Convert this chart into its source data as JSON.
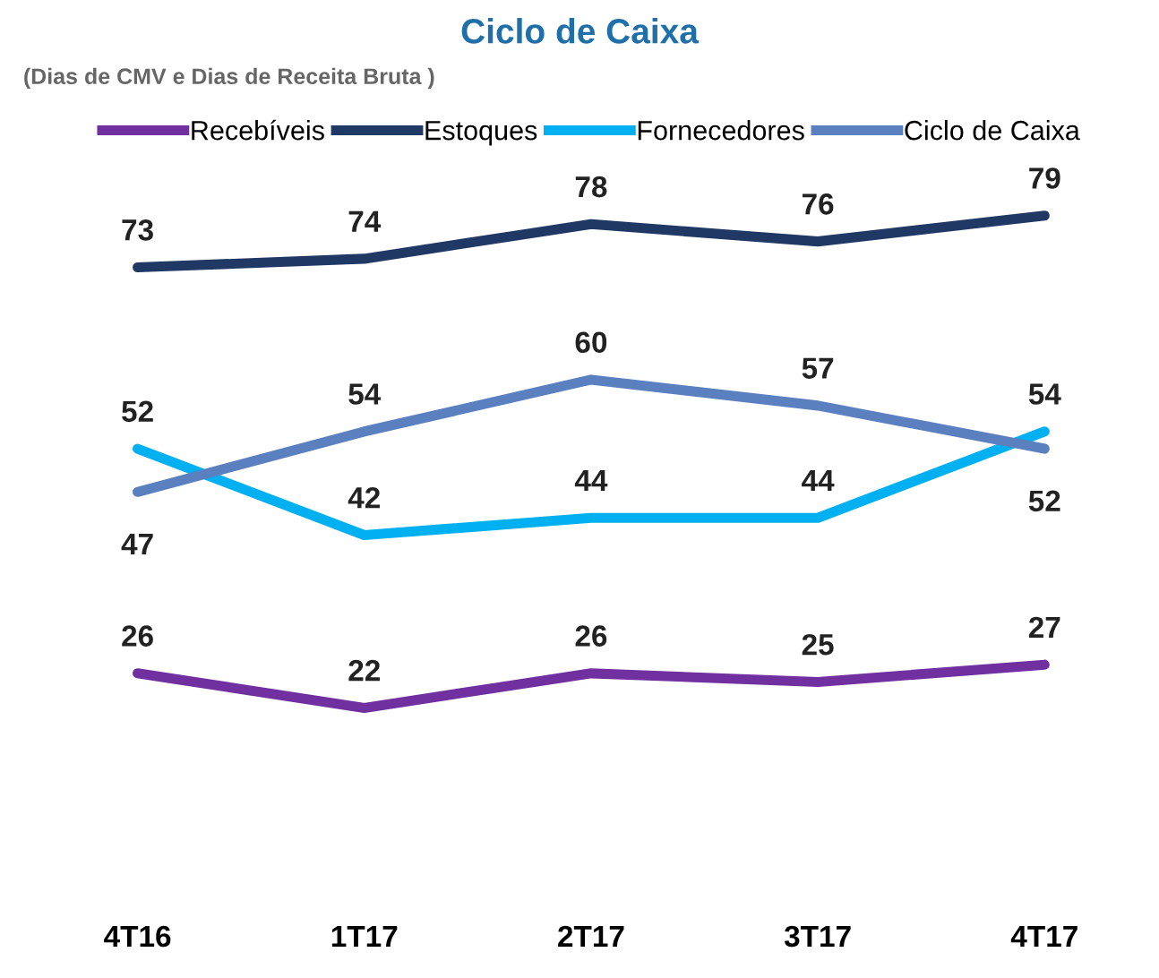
{
  "chart_data": {
    "type": "line",
    "title": "Ciclo de Caixa",
    "subtitle": "(Dias de CMV e Dias de Receita Bruta )",
    "categories": [
      "4T16",
      "1T17",
      "2T17",
      "3T17",
      "4T17"
    ],
    "series": [
      {
        "name": "Recebíveis",
        "color": "#7030a0",
        "values": [
          26,
          22,
          26,
          25,
          27
        ]
      },
      {
        "name": "Estoques",
        "color": "#1f3864",
        "values": [
          73,
          74,
          78,
          76,
          79
        ]
      },
      {
        "name": "Fornecedores",
        "color": "#00b0f0",
        "values": [
          52,
          42,
          44,
          44,
          54
        ]
      },
      {
        "name": "Ciclo de Caixa",
        "color": "#5b80c0",
        "values": [
          47,
          54,
          60,
          57,
          52
        ]
      }
    ],
    "data_labels": true,
    "legend": "top",
    "tick_labels": "x"
  }
}
